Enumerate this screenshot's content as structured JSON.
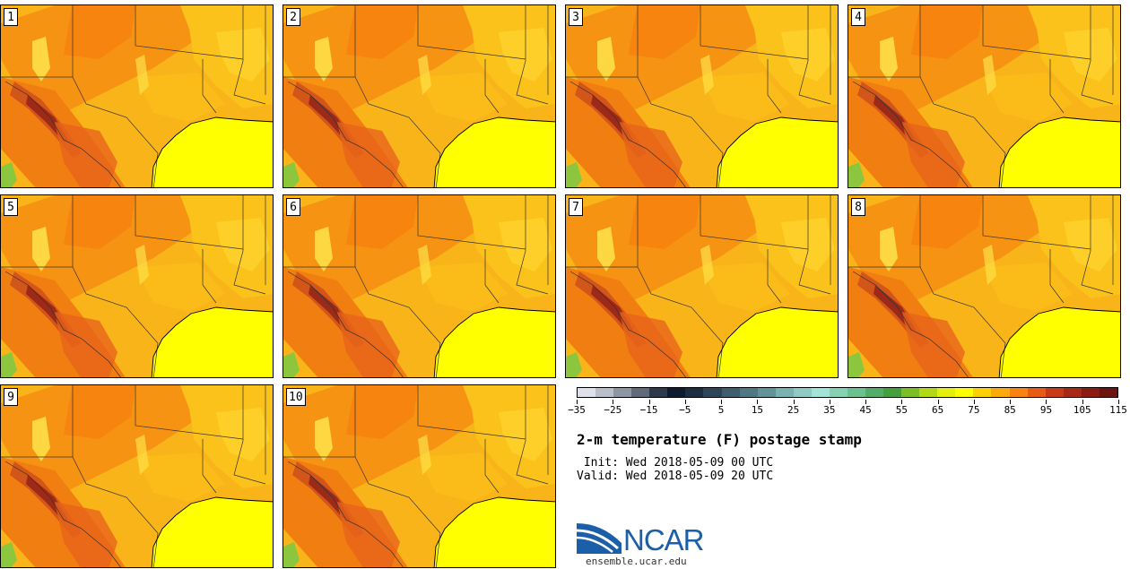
{
  "panels": [
    {
      "label": "1"
    },
    {
      "label": "2"
    },
    {
      "label": "3"
    },
    {
      "label": "4"
    },
    {
      "label": "5"
    },
    {
      "label": "6"
    },
    {
      "label": "7"
    },
    {
      "label": "8"
    },
    {
      "label": "9"
    },
    {
      "label": "10"
    }
  ],
  "colorbar": {
    "colors": [
      "#dfe1ea",
      "#b9bec8",
      "#8e96a3",
      "#5f6b7a",
      "#2c3a4c",
      "#0d1a2f",
      "#1b2e42",
      "#2c4558",
      "#3f5d6e",
      "#4f7784",
      "#629399",
      "#79b2b1",
      "#8fcbc4",
      "#a2e4d7",
      "#84d2b1",
      "#6bc28f",
      "#51ad67",
      "#43a03c",
      "#7cbf25",
      "#b2d915",
      "#e6ef0b",
      "#fefe00",
      "#fdd006",
      "#fbaa0c",
      "#f98310",
      "#e75c12",
      "#c83a15",
      "#a82915",
      "#8a1c14",
      "#6b1510"
    ],
    "tick_labels": [
      "-35",
      "-25",
      "-15",
      "-5",
      "5",
      "15",
      "25",
      "35",
      "45",
      "55",
      "65",
      "75",
      "85",
      "95",
      "105",
      "115"
    ]
  },
  "title": "2-m temperature (F) postage stamp",
  "init": " Init: Wed 2018-05-09 00 UTC",
  "valid": "Valid: Wed 2018-05-09 20 UTC",
  "logo_text": "NCAR",
  "url": "ensemble.ucar.edu"
}
